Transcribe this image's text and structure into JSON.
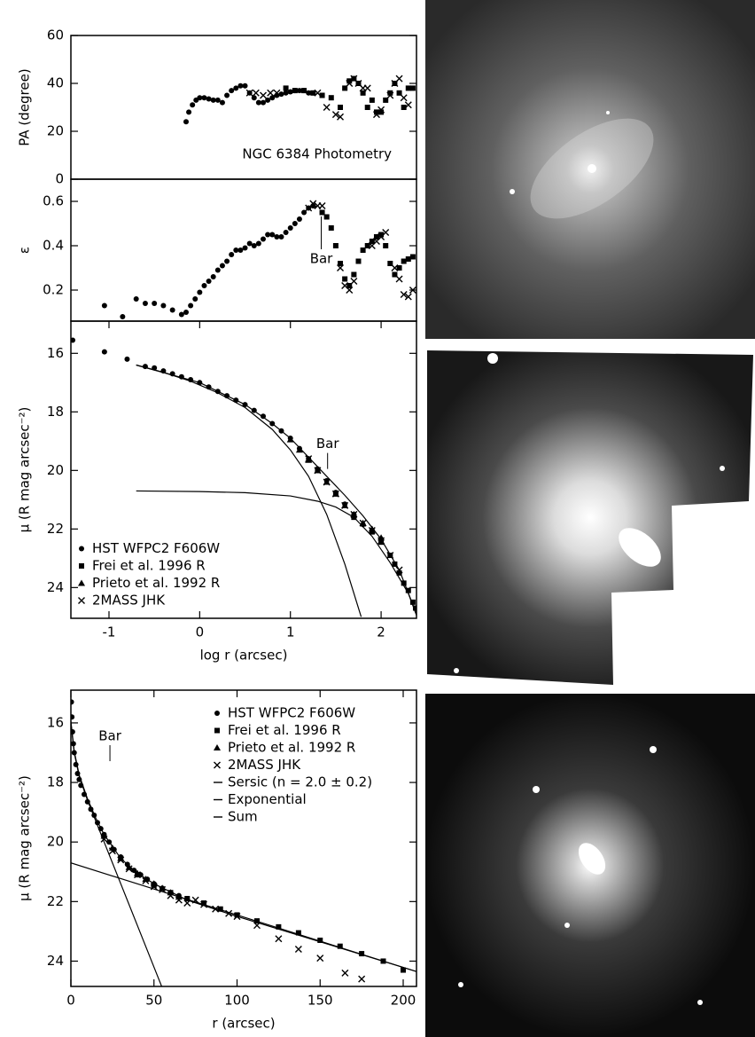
{
  "chart_data": [
    {
      "type": "scatter",
      "ylabel": "PA (degree)",
      "annotation": "NGC 6384 Photometry",
      "xlim": [
        -1.42,
        2.39
      ],
      "ylim": [
        0,
        60
      ],
      "yticks": [
        0,
        20,
        40,
        60
      ],
      "color": "#000000",
      "series": [
        {
          "marker": "circle",
          "x": [
            -0.15,
            -0.12,
            -0.08,
            -0.04,
            0,
            0.05,
            0.1,
            0.15,
            0.2,
            0.25,
            0.3,
            0.35,
            0.4,
            0.45,
            0.5,
            0.55,
            0.6,
            0.65,
            0.7,
            0.75,
            0.8,
            0.85,
            0.9,
            0.95,
            1.0,
            1.05,
            1.1,
            1.15,
            1.2
          ],
          "values": [
            24,
            28,
            31,
            33,
            34,
            34,
            33.5,
            33,
            33,
            32,
            35,
            37,
            38,
            39,
            39,
            36,
            34,
            32,
            32,
            33,
            34,
            35,
            35.5,
            36,
            36.5,
            37,
            37,
            37,
            36
          ]
        },
        {
          "marker": "square",
          "x": [
            0.95,
            1.05,
            1.15,
            1.25,
            1.35,
            1.45,
            1.55,
            1.6,
            1.65,
            1.7,
            1.75,
            1.8,
            1.85,
            1.9,
            1.95,
            2.0,
            2.05,
            2.1,
            2.15,
            2.2,
            2.25,
            2.3,
            2.35
          ],
          "values": [
            38,
            37,
            37,
            36,
            35,
            34,
            30,
            38,
            41,
            42,
            40,
            36,
            30,
            33,
            28,
            28,
            33,
            36,
            40,
            36,
            30,
            38,
            38
          ]
        },
        {
          "marker": "cross",
          "x": [
            0.55,
            0.62,
            0.7,
            0.78,
            0.85,
            1.3,
            1.4,
            1.5,
            1.55,
            1.65,
            1.7,
            1.75,
            1.8,
            1.85,
            1.95,
            2.0,
            2.1,
            2.15,
            2.2,
            2.25,
            2.3
          ],
          "values": [
            36,
            36,
            35,
            36,
            36,
            36,
            30,
            27,
            26,
            40,
            42,
            40,
            38,
            38,
            27,
            29,
            35,
            40,
            42,
            34,
            31
          ]
        }
      ]
    },
    {
      "type": "scatter",
      "ylabel": "ε",
      "xlim": [
        -1.42,
        2.39
      ],
      "ylim": [
        0.06,
        0.7
      ],
      "yticks": [
        0.2,
        0.4,
        0.6
      ],
      "color": "#000000",
      "annotations": [
        {
          "text": "Bar",
          "x": 1.34,
          "y": 0.34,
          "pointer": "up"
        }
      ],
      "series": [
        {
          "marker": "circle",
          "x": [
            -1.05,
            -0.85,
            -0.7,
            -0.6,
            -0.5,
            -0.4,
            -0.3,
            -0.2,
            -0.15,
            -0.1,
            -0.05,
            0,
            0.05,
            0.1,
            0.15,
            0.2,
            0.25,
            0.3,
            0.35,
            0.4,
            0.45,
            0.5,
            0.55,
            0.6,
            0.65,
            0.7,
            0.75,
            0.8,
            0.85,
            0.9,
            0.95,
            1.0,
            1.05,
            1.1,
            1.15,
            1.2,
            1.25
          ],
          "values": [
            0.13,
            0.08,
            0.16,
            0.14,
            0.14,
            0.13,
            0.11,
            0.09,
            0.1,
            0.13,
            0.16,
            0.19,
            0.22,
            0.24,
            0.26,
            0.29,
            0.31,
            0.33,
            0.36,
            0.38,
            0.38,
            0.39,
            0.41,
            0.4,
            0.41,
            0.43,
            0.45,
            0.45,
            0.44,
            0.44,
            0.46,
            0.48,
            0.5,
            0.52,
            0.55,
            0.57,
            0.58
          ]
        },
        {
          "marker": "square",
          "x": [
            1.35,
            1.4,
            1.45,
            1.5,
            1.55,
            1.6,
            1.65,
            1.7,
            1.75,
            1.8,
            1.85,
            1.9,
            1.95,
            2.0,
            2.05,
            2.1,
            2.15,
            2.2,
            2.25,
            2.3,
            2.35
          ],
          "values": [
            0.55,
            0.53,
            0.48,
            0.4,
            0.32,
            0.25,
            0.22,
            0.27,
            0.33,
            0.38,
            0.4,
            0.42,
            0.44,
            0.45,
            0.4,
            0.32,
            0.27,
            0.3,
            0.33,
            0.34,
            0.35
          ]
        },
        {
          "marker": "cross",
          "x": [
            1.2,
            1.25,
            1.3,
            1.35,
            1.55,
            1.6,
            1.65,
            1.7,
            1.9,
            1.95,
            2.0,
            2.05,
            2.15,
            2.2,
            2.25,
            2.3,
            2.35
          ],
          "values": [
            0.57,
            0.59,
            0.58,
            0.58,
            0.3,
            0.22,
            0.2,
            0.24,
            0.4,
            0.42,
            0.44,
            0.46,
            0.3,
            0.25,
            0.18,
            0.17,
            0.2
          ]
        }
      ]
    },
    {
      "type": "scatter",
      "ylabel": "μ (R mag arcsec⁻²)",
      "xlabel": "log r (arcsec)",
      "xlim": [
        -1.42,
        2.39
      ],
      "xticks": [
        -1,
        0,
        1,
        2
      ],
      "ylim": [
        25.05,
        14.9
      ],
      "yticks": [
        16,
        18,
        20,
        22,
        24
      ],
      "color": "#000000",
      "legend": "lower left",
      "annotations": [
        {
          "text": "Bar",
          "x": 1.41,
          "y": 19.1,
          "pointer": "down"
        }
      ],
      "series": [
        {
          "name": "HST WFPC2 F606W",
          "marker": "circle",
          "x": [
            -1.4,
            -1.05,
            -0.8,
            -0.6,
            -0.5,
            -0.4,
            -0.3,
            -0.2,
            -0.1,
            0,
            0.1,
            0.2,
            0.3,
            0.4,
            0.5,
            0.6,
            0.7,
            0.8,
            0.9,
            1.0,
            1.1,
            1.2,
            1.3,
            1.4,
            1.5,
            1.6,
            1.7,
            1.8,
            1.9,
            2.0
          ],
          "values": [
            15.55,
            15.95,
            16.2,
            16.45,
            16.5,
            16.6,
            16.7,
            16.8,
            16.9,
            17.0,
            17.15,
            17.3,
            17.45,
            17.6,
            17.75,
            17.95,
            18.15,
            18.4,
            18.65,
            18.9,
            19.25,
            19.6,
            19.95,
            20.35,
            20.75,
            21.15,
            21.5,
            21.85,
            22.05,
            22.35
          ]
        },
        {
          "name": "Frei et al. 1996 R",
          "marker": "square",
          "x": [
            1.3,
            1.5,
            1.7,
            1.9,
            2.0,
            2.1,
            2.15,
            2.2,
            2.25,
            2.3,
            2.35,
            2.38
          ],
          "values": [
            20.0,
            20.8,
            21.6,
            22.1,
            22.45,
            22.9,
            23.2,
            23.5,
            23.85,
            24.1,
            24.5,
            24.7
          ]
        },
        {
          "name": "Prieto et al. 1992 R",
          "marker": "triangle",
          "x": [
            1.0,
            1.1,
            1.2,
            1.3,
            1.4,
            1.5,
            1.6,
            1.7,
            1.8,
            1.9,
            2.0
          ],
          "values": [
            18.95,
            19.3,
            19.65,
            20.0,
            20.4,
            20.8,
            21.2,
            21.5,
            21.8,
            22.0,
            22.3
          ]
        },
        {
          "name": "2MASS JHK",
          "marker": "cross",
          "x": [
            1.2,
            1.3,
            1.4,
            1.5,
            1.6,
            1.7,
            1.8,
            1.9,
            2.0,
            2.1,
            2.2
          ],
          "values": [
            19.6,
            20.0,
            20.4,
            20.8,
            21.2,
            21.5,
            21.8,
            22.05,
            22.4,
            22.9,
            23.4
          ]
        },
        {
          "marker": "line",
          "x": [
            -0.7,
            -0.4,
            -0.1,
            0.2,
            0.5,
            0.8,
            1.0,
            1.2,
            1.4,
            1.6,
            1.78
          ],
          "values": [
            16.4,
            16.65,
            16.95,
            17.35,
            17.85,
            18.6,
            19.3,
            20.2,
            21.5,
            23.2,
            25.0
          ]
        },
        {
          "marker": "line",
          "x": [
            -0.7,
            0,
            0.5,
            1.0,
            1.3,
            1.5,
            1.7,
            1.9,
            2.1,
            2.3,
            2.39
          ],
          "values": [
            20.7,
            20.72,
            20.76,
            20.87,
            21.05,
            21.25,
            21.6,
            22.25,
            23.15,
            24.2,
            24.95
          ]
        },
        {
          "marker": "line",
          "x": [
            -0.7,
            0,
            0.5,
            0.8,
            1.0,
            1.2,
            1.4,
            1.6,
            1.8,
            2.0,
            2.2,
            2.39
          ],
          "values": [
            16.4,
            17.0,
            17.75,
            18.4,
            18.9,
            19.55,
            20.2,
            20.85,
            21.55,
            22.35,
            23.4,
            24.9
          ]
        }
      ]
    },
    {
      "type": "scatter",
      "ylabel": "μ (R mag arcsec⁻²)",
      "xlabel": "r (arcsec)",
      "xlim": [
        0,
        208
      ],
      "xticks": [
        0,
        50,
        100,
        150,
        200
      ],
      "ylim": [
        24.85,
        14.9
      ],
      "yticks": [
        16,
        18,
        20,
        22,
        24
      ],
      "color": "#000000",
      "legend": "upper right",
      "annotations": [
        {
          "text": "Bar",
          "x": 23.5,
          "y": 16.45,
          "pointer": "down"
        }
      ],
      "series": [
        {
          "name": "HST WFPC2 F606W",
          "marker": "circle",
          "x": [
            0.3,
            0.6,
            1,
            1.5,
            2,
            3,
            4,
            5,
            6,
            8,
            10,
            12,
            14,
            16,
            18,
            20,
            23,
            26,
            30,
            34,
            38,
            42,
            46,
            50,
            55,
            60,
            65,
            70
          ],
          "values": [
            15.3,
            15.8,
            16.3,
            16.7,
            17.0,
            17.4,
            17.7,
            17.9,
            18.1,
            18.4,
            18.65,
            18.9,
            19.1,
            19.35,
            19.55,
            19.75,
            20.0,
            20.25,
            20.5,
            20.75,
            20.95,
            21.1,
            21.25,
            21.4,
            21.55,
            21.7,
            21.8,
            21.9
          ]
        },
        {
          "name": "Frei et al. 1996 R",
          "marker": "square",
          "x": [
            30,
            40,
            50,
            60,
            70,
            80,
            90,
            100,
            112,
            125,
            137,
            150,
            162,
            175,
            188,
            200
          ],
          "values": [
            20.55,
            21.1,
            21.45,
            21.7,
            21.9,
            22.05,
            22.25,
            22.45,
            22.65,
            22.85,
            23.05,
            23.3,
            23.5,
            23.75,
            24.0,
            24.3
          ]
        },
        {
          "name": "Prieto et al. 1992 R",
          "marker": "triangle",
          "x": [
            20,
            25,
            30,
            35,
            40,
            45,
            50,
            55,
            60,
            65
          ],
          "values": [
            19.8,
            20.2,
            20.55,
            20.85,
            21.05,
            21.25,
            21.4,
            21.55,
            21.7,
            21.85
          ]
        },
        {
          "name": "2MASS JHK",
          "marker": "cross",
          "x": [
            20,
            25,
            30,
            35,
            40,
            45,
            50,
            55,
            60,
            65,
            70,
            75,
            80,
            87,
            95,
            100,
            112,
            125,
            137,
            150,
            165,
            175
          ],
          "values": [
            19.9,
            20.3,
            20.6,
            20.9,
            21.1,
            21.3,
            21.5,
            21.6,
            21.8,
            21.95,
            22.05,
            21.95,
            22.1,
            22.25,
            22.4,
            22.5,
            22.8,
            23.25,
            23.6,
            23.9,
            24.4,
            24.6
          ]
        },
        {
          "name": "Sersic (n = 2.0 ± 0.2)",
          "marker": "line",
          "x": [
            0,
            2,
            5,
            10,
            15,
            20,
            30,
            40,
            50,
            60
          ],
          "values": [
            16.0,
            17.0,
            17.8,
            18.6,
            19.3,
            20.0,
            21.4,
            22.8,
            24.2,
            25.6
          ]
        },
        {
          "name": "Exponential",
          "marker": "line",
          "x": [
            0,
            50,
            100,
            150,
            208
          ],
          "values": [
            20.7,
            21.58,
            22.45,
            23.33,
            24.35
          ]
        },
        {
          "name": "Sum",
          "marker": "line",
          "x": [
            0,
            2,
            5,
            10,
            15,
            20,
            30,
            40,
            50,
            70,
            100,
            150,
            208
          ],
          "values": [
            15.95,
            16.95,
            17.75,
            18.55,
            19.2,
            19.75,
            20.55,
            21.05,
            21.4,
            21.95,
            22.5,
            23.35,
            24.35
          ]
        }
      ]
    }
  ]
}
